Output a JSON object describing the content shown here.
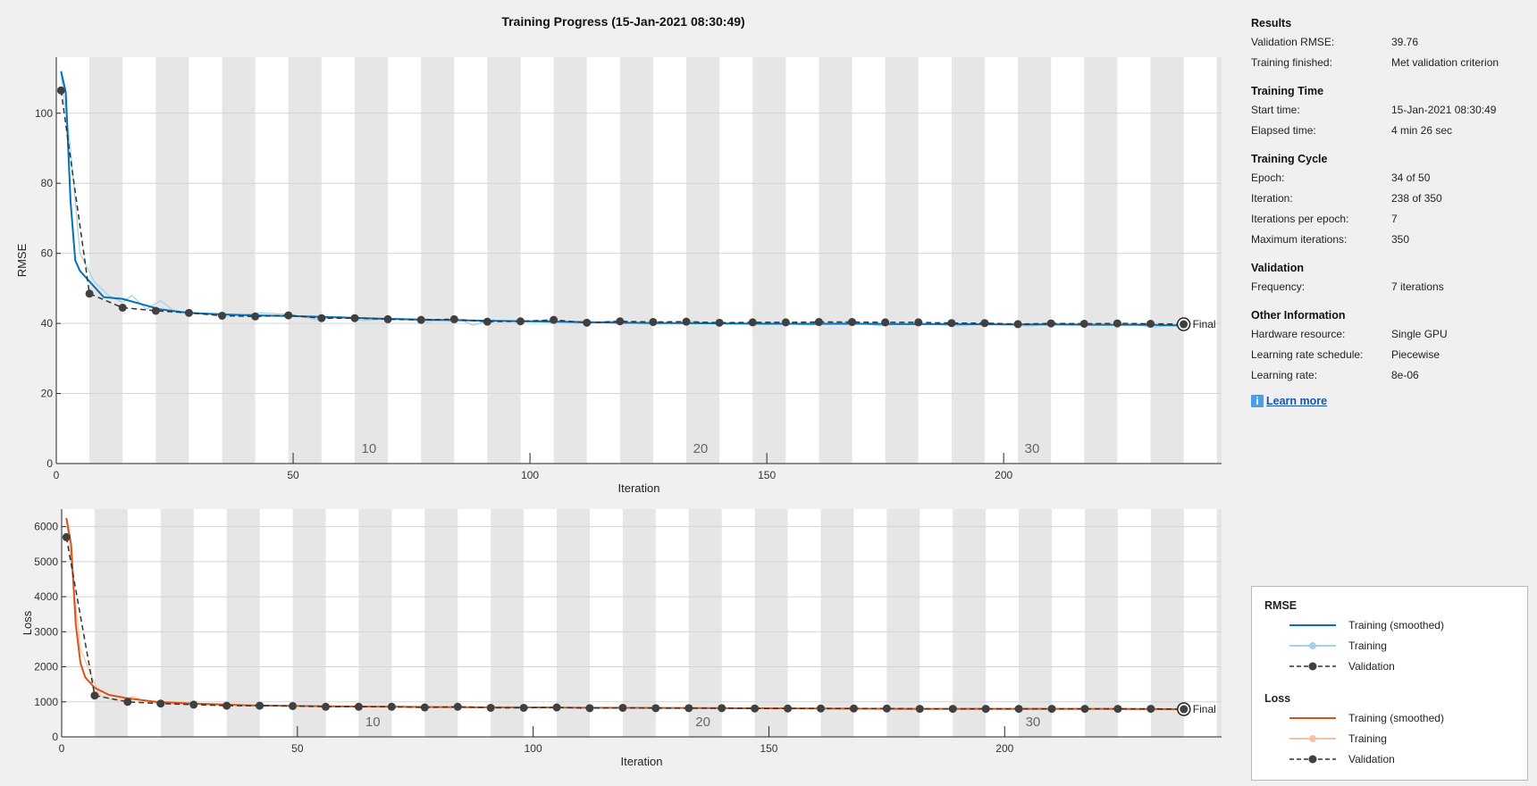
{
  "title": "Training Progress (15-Jan-2021 08:30:49)",
  "info": {
    "sections": [
      {
        "heading": "Results",
        "rows": [
          {
            "label": "Validation RMSE:",
            "value": "39.76"
          },
          {
            "label": "Training finished:",
            "value": "Met validation criterion"
          }
        ]
      },
      {
        "heading": "Training Time",
        "rows": [
          {
            "label": "Start time:",
            "value": "15-Jan-2021 08:30:49"
          },
          {
            "label": "Elapsed time:",
            "value": "4 min 26 sec"
          }
        ]
      },
      {
        "heading": "Training Cycle",
        "rows": [
          {
            "label": "Epoch:",
            "value": "34 of 50"
          },
          {
            "label": "Iteration:",
            "value": "238 of 350"
          },
          {
            "label": "Iterations per epoch:",
            "value": "7"
          },
          {
            "label": "Maximum iterations:",
            "value": "350"
          }
        ]
      },
      {
        "heading": "Validation",
        "rows": [
          {
            "label": "Frequency:",
            "value": "7 iterations"
          }
        ]
      },
      {
        "heading": "Other Information",
        "rows": [
          {
            "label": "Hardware resource:",
            "value": "Single GPU"
          },
          {
            "label": "Learning rate schedule:",
            "value": "Piecewise"
          },
          {
            "label": "Learning rate:",
            "value": "8e-06"
          }
        ]
      }
    ],
    "learn_more": "Learn more",
    "info_icon": "info-icon"
  },
  "legend": {
    "groups": [
      {
        "heading": "RMSE",
        "items": [
          {
            "label": "Training (smoothed)",
            "style": "solid",
            "color": "#0072bd"
          },
          {
            "label": "Training",
            "style": "marker",
            "color": "#a6cfe8"
          },
          {
            "label": "Validation",
            "style": "dashed-marker",
            "color": "#333333"
          }
        ]
      },
      {
        "heading": "Loss",
        "items": [
          {
            "label": "Training (smoothed)",
            "style": "solid",
            "color": "#d95319"
          },
          {
            "label": "Training",
            "style": "marker",
            "color": "#f2c1a6"
          },
          {
            "label": "Validation",
            "style": "dashed-marker",
            "color": "#333333"
          }
        ]
      }
    ]
  },
  "chart_data": [
    {
      "type": "line",
      "title": "",
      "xlabel": "Iteration",
      "ylabel": "RMSE",
      "xlim": [
        0,
        246
      ],
      "ylim": [
        0,
        116
      ],
      "xticks": [
        0,
        50,
        100,
        150,
        200
      ],
      "yticks": [
        0,
        20,
        40,
        60,
        80,
        100
      ],
      "epoch_labels": [
        {
          "epoch": 10,
          "x": 66
        },
        {
          "epoch": 20,
          "x": 136
        },
        {
          "epoch": 30,
          "x": 206
        }
      ],
      "epoch_length": 7,
      "final_label": "Final",
      "grid": true,
      "colors": {
        "smoothed": "#0072bd",
        "raw": "#a6cfe8",
        "validation": "#333333"
      },
      "smoothed": {
        "x": [
          1,
          2,
          3,
          4,
          5,
          7,
          10,
          14,
          18,
          22,
          28,
          35,
          42,
          50,
          60,
          70,
          80,
          90,
          100,
          110,
          120,
          130,
          140,
          150,
          160,
          170,
          180,
          190,
          200,
          210,
          220,
          230,
          238
        ],
        "y": [
          112,
          106,
          75,
          58,
          55,
          52,
          47.5,
          47,
          45.5,
          44,
          43,
          42.6,
          42.3,
          42.1,
          41.7,
          41.3,
          41,
          40.8,
          40.6,
          40.4,
          40.2,
          40.1,
          40,
          39.9,
          39.9,
          39.9,
          39.8,
          39.8,
          39.7,
          39.7,
          39.6,
          39.6,
          39.4
        ]
      },
      "raw": {
        "x": [
          1,
          3,
          5,
          8,
          11,
          14,
          16,
          19,
          22,
          25,
          30,
          36,
          43,
          50,
          55,
          60,
          65,
          72,
          78,
          85,
          88,
          92,
          97,
          104,
          110,
          118,
          126,
          134,
          142,
          151,
          159,
          166,
          174,
          182,
          190,
          198,
          205,
          212,
          220,
          227,
          232,
          236,
          238
        ],
        "y": [
          111,
          90,
          60,
          52,
          48,
          46,
          48,
          44,
          46.5,
          43.5,
          43,
          42,
          43,
          42.5,
          41,
          42,
          40.8,
          41.5,
          40.5,
          41.3,
          39.5,
          41,
          40.5,
          41,
          40,
          40.7,
          39.7,
          40.5,
          39.8,
          40.2,
          39.5,
          40.3,
          39.4,
          40.1,
          39.3,
          40,
          39.2,
          40,
          39.5,
          39.8,
          38.9,
          39.6,
          39.8
        ]
      },
      "validation": {
        "x": [
          1,
          7,
          14,
          21,
          28,
          35,
          42,
          49,
          56,
          63,
          70,
          77,
          84,
          91,
          98,
          105,
          112,
          119,
          126,
          133,
          140,
          147,
          154,
          161,
          168,
          175,
          182,
          189,
          196,
          203,
          210,
          217,
          224,
          231,
          238
        ],
        "y": [
          106.5,
          48.5,
          44.5,
          43.6,
          43,
          42.2,
          42,
          42.3,
          41.5,
          41.5,
          41.2,
          41,
          41.2,
          40.5,
          40.6,
          41,
          40.2,
          40.6,
          40.4,
          40.5,
          40.2,
          40.3,
          40.3,
          40.4,
          40.4,
          40.3,
          40.3,
          40.1,
          40.1,
          39.8,
          40,
          39.9,
          40,
          39.9,
          39.8
        ]
      },
      "final": 39.76
    },
    {
      "type": "line",
      "title": "",
      "xlabel": "Iteration",
      "ylabel": "Loss",
      "xlim": [
        0,
        246
      ],
      "ylim": [
        0,
        6500
      ],
      "xticks": [
        0,
        50,
        100,
        150,
        200
      ],
      "yticks": [
        0,
        1000,
        2000,
        3000,
        4000,
        5000,
        6000
      ],
      "epoch_labels": [
        {
          "epoch": 10,
          "x": 66
        },
        {
          "epoch": 20,
          "x": 136
        },
        {
          "epoch": 30,
          "x": 206
        }
      ],
      "epoch_length": 7,
      "final_label": "Final",
      "grid": true,
      "colors": {
        "smoothed": "#d95319",
        "raw": "#f2c1a6",
        "validation": "#333333"
      },
      "smoothed": {
        "x": [
          1,
          2,
          3,
          4,
          5,
          7,
          10,
          14,
          20,
          28,
          40,
          60,
          80,
          100,
          120,
          140,
          160,
          180,
          200,
          220,
          238
        ],
        "y": [
          6250,
          5500,
          3200,
          2100,
          1700,
          1400,
          1200,
          1100,
          1000,
          950,
          900,
          870,
          850,
          840,
          830,
          820,
          810,
          800,
          800,
          800,
          790
        ]
      },
      "raw": {
        "x": [
          1,
          4,
          8,
          12,
          15,
          18,
          22,
          30,
          40,
          50,
          60,
          70,
          80,
          90,
          100,
          110,
          120,
          130,
          140,
          150,
          160,
          170,
          180,
          190,
          200,
          210,
          220,
          230,
          238
        ],
        "y": [
          6200,
          2500,
          1200,
          1000,
          1150,
          1000,
          950,
          920,
          900,
          880,
          860,
          870,
          850,
          840,
          850,
          830,
          840,
          820,
          830,
          810,
          820,
          800,
          810,
          790,
          800,
          790,
          800,
          780,
          790
        ]
      },
      "validation": {
        "x": [
          1,
          7,
          14,
          21,
          28,
          35,
          42,
          49,
          56,
          63,
          70,
          77,
          84,
          91,
          98,
          105,
          112,
          119,
          126,
          133,
          140,
          147,
          154,
          161,
          168,
          175,
          182,
          189,
          196,
          203,
          210,
          217,
          224,
          231,
          238
        ],
        "y": [
          5700,
          1180,
          1000,
          950,
          920,
          890,
          890,
          880,
          860,
          860,
          860,
          840,
          860,
          830,
          830,
          840,
          820,
          830,
          820,
          820,
          820,
          810,
          810,
          810,
          810,
          810,
          800,
          800,
          800,
          800,
          800,
          800,
          800,
          800,
          790
        ]
      },
      "final": 790
    }
  ]
}
